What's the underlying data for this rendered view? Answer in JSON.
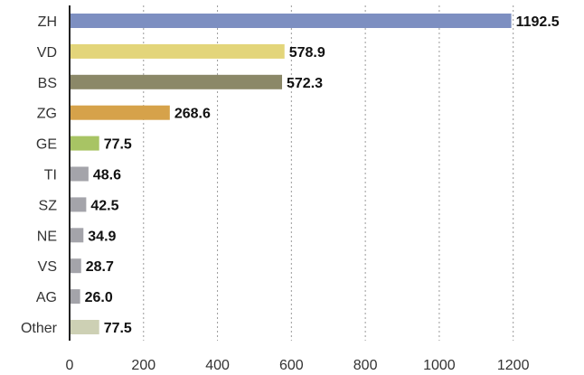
{
  "chart_data": {
    "type": "bar",
    "orientation": "horizontal",
    "categories": [
      "ZH",
      "VD",
      "BS",
      "ZG",
      "GE",
      "TI",
      "SZ",
      "NE",
      "VS",
      "AG",
      "Other"
    ],
    "values": [
      1192.5,
      578.9,
      572.3,
      268.6,
      77.5,
      48.6,
      42.5,
      34.9,
      28.7,
      26.0,
      77.5
    ],
    "value_labels": [
      "1192.5",
      "578.9",
      "572.3",
      "268.6",
      "77.5",
      "48.6",
      "42.5",
      "34.9",
      "28.7",
      "26.0",
      "77.5"
    ],
    "colors": [
      "#7d8fc1",
      "#e3d57a",
      "#8b8868",
      "#d6a24a",
      "#a8c464",
      "#a4a4aa",
      "#a4a4aa",
      "#a4a4aa",
      "#a4a4aa",
      "#a4a4aa",
      "#cdd0b4"
    ],
    "xlim": [
      0,
      1300
    ],
    "xticks": [
      0,
      200,
      400,
      600,
      800,
      1000,
      1200
    ],
    "xtick_labels": [
      "0",
      "200",
      "400",
      "600",
      "800",
      "1000",
      "1200"
    ],
    "title": "",
    "xlabel": "",
    "ylabel": "",
    "grid": "vertical dashed",
    "legend": "none"
  }
}
